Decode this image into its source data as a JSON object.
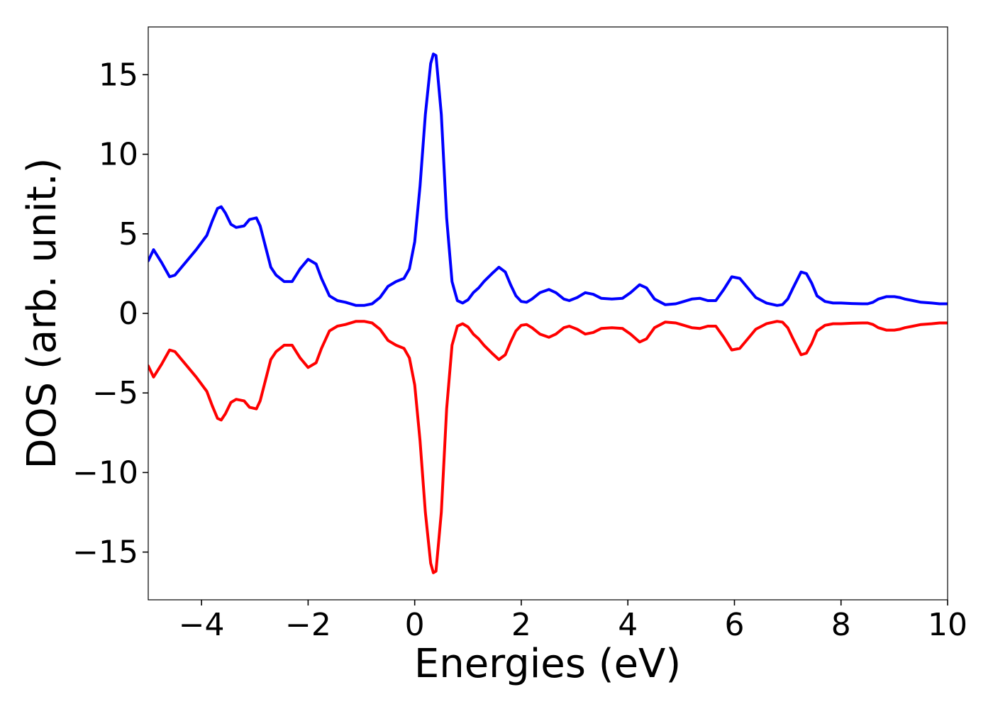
{
  "chart_data": {
    "type": "line",
    "title": "",
    "xlabel": "Energies (eV)",
    "ylabel": "DOS (arb. unit.)",
    "xlim": [
      -5,
      10
    ],
    "ylim": [
      -18,
      18
    ],
    "grid": false,
    "legend": "none",
    "x_ticks": [
      -4,
      -2,
      0,
      2,
      4,
      6,
      8,
      10
    ],
    "x_tick_labels": [
      "−4",
      "−2",
      "0",
      "2",
      "4",
      "6",
      "8",
      "10"
    ],
    "y_ticks": [
      15,
      10,
      5,
      0,
      -5,
      -10,
      -15
    ],
    "y_tick_labels": [
      "15",
      "10",
      "5",
      "0",
      "−5",
      "−10",
      "−15"
    ],
    "series": [
      {
        "color": "#0000ff",
        "x": [
          -5.0,
          -4.9,
          -4.75,
          -4.6,
          -4.5,
          -4.3,
          -4.1,
          -3.9,
          -3.8,
          -3.7,
          -3.63,
          -3.55,
          -3.45,
          -3.35,
          -3.2,
          -3.1,
          -2.97,
          -2.9,
          -2.8,
          -2.7,
          -2.6,
          -2.45,
          -2.3,
          -2.15,
          -2.0,
          -1.85,
          -1.75,
          -1.6,
          -1.45,
          -1.3,
          -1.1,
          -0.95,
          -0.8,
          -0.65,
          -0.5,
          -0.35,
          -0.2,
          -0.1,
          0.0,
          0.1,
          0.2,
          0.3,
          0.35,
          0.4,
          0.5,
          0.6,
          0.7,
          0.8,
          0.9,
          1.0,
          1.1,
          1.2,
          1.3,
          1.45,
          1.58,
          1.7,
          1.8,
          1.9,
          2.0,
          2.1,
          2.2,
          2.35,
          2.52,
          2.65,
          2.8,
          2.9,
          3.05,
          3.2,
          3.35,
          3.5,
          3.7,
          3.9,
          4.05,
          4.22,
          4.35,
          4.5,
          4.7,
          4.9,
          5.05,
          5.2,
          5.35,
          5.5,
          5.65,
          5.8,
          5.95,
          6.1,
          6.25,
          6.4,
          6.6,
          6.8,
          6.9,
          7.0,
          7.1,
          7.25,
          7.35,
          7.45,
          7.55,
          7.7,
          7.85,
          8.0,
          8.2,
          8.4,
          8.5,
          8.6,
          8.7,
          8.85,
          9.0,
          9.1,
          9.2,
          9.35,
          9.5,
          9.7,
          9.85,
          10.0
        ],
        "y": [
          3.3,
          4.0,
          3.2,
          2.3,
          2.4,
          3.2,
          4.0,
          4.9,
          5.8,
          6.6,
          6.7,
          6.3,
          5.6,
          5.4,
          5.5,
          5.9,
          6.0,
          5.5,
          4.2,
          2.9,
          2.4,
          2.0,
          2.0,
          2.8,
          3.4,
          3.1,
          2.2,
          1.1,
          0.8,
          0.7,
          0.5,
          0.5,
          0.6,
          1.0,
          1.7,
          2.0,
          2.2,
          2.8,
          4.5,
          8.0,
          12.5,
          15.7,
          16.3,
          16.2,
          12.5,
          6.0,
          2.0,
          0.8,
          0.65,
          0.85,
          1.3,
          1.6,
          2.0,
          2.5,
          2.9,
          2.6,
          1.8,
          1.1,
          0.75,
          0.7,
          0.9,
          1.3,
          1.5,
          1.3,
          0.9,
          0.8,
          1.0,
          1.3,
          1.2,
          0.95,
          0.9,
          0.95,
          1.3,
          1.8,
          1.6,
          0.9,
          0.55,
          0.6,
          0.75,
          0.9,
          0.95,
          0.8,
          0.8,
          1.5,
          2.3,
          2.2,
          1.6,
          1.0,
          0.65,
          0.5,
          0.55,
          0.9,
          1.6,
          2.6,
          2.5,
          1.9,
          1.1,
          0.75,
          0.65,
          0.65,
          0.62,
          0.6,
          0.6,
          0.7,
          0.9,
          1.05,
          1.05,
          1.0,
          0.9,
          0.8,
          0.7,
          0.65,
          0.6,
          0.6
        ]
      },
      {
        "color": "#ff0000",
        "x": [
          -5.0,
          -4.9,
          -4.75,
          -4.6,
          -4.5,
          -4.3,
          -4.1,
          -3.9,
          -3.8,
          -3.7,
          -3.63,
          -3.55,
          -3.45,
          -3.35,
          -3.2,
          -3.1,
          -2.97,
          -2.9,
          -2.8,
          -2.7,
          -2.6,
          -2.45,
          -2.3,
          -2.15,
          -2.0,
          -1.85,
          -1.75,
          -1.6,
          -1.45,
          -1.3,
          -1.1,
          -0.95,
          -0.8,
          -0.65,
          -0.5,
          -0.35,
          -0.2,
          -0.1,
          0.0,
          0.1,
          0.2,
          0.3,
          0.35,
          0.4,
          0.5,
          0.6,
          0.7,
          0.8,
          0.9,
          1.0,
          1.1,
          1.2,
          1.3,
          1.45,
          1.58,
          1.7,
          1.8,
          1.9,
          2.0,
          2.1,
          2.2,
          2.35,
          2.52,
          2.65,
          2.8,
          2.9,
          3.05,
          3.2,
          3.35,
          3.5,
          3.7,
          3.9,
          4.05,
          4.22,
          4.35,
          4.5,
          4.7,
          4.9,
          5.05,
          5.2,
          5.35,
          5.5,
          5.65,
          5.8,
          5.95,
          6.1,
          6.25,
          6.4,
          6.6,
          6.8,
          6.9,
          7.0,
          7.1,
          7.25,
          7.35,
          7.45,
          7.55,
          7.7,
          7.85,
          8.0,
          8.2,
          8.4,
          8.5,
          8.6,
          8.7,
          8.85,
          9.0,
          9.1,
          9.2,
          9.35,
          9.5,
          9.7,
          9.85,
          10.0
        ],
        "y": [
          -3.3,
          -4.0,
          -3.2,
          -2.3,
          -2.4,
          -3.2,
          -4.0,
          -4.9,
          -5.8,
          -6.6,
          -6.7,
          -6.3,
          -5.6,
          -5.4,
          -5.5,
          -5.9,
          -6.0,
          -5.5,
          -4.2,
          -2.9,
          -2.4,
          -2.0,
          -2.0,
          -2.8,
          -3.4,
          -3.1,
          -2.2,
          -1.1,
          -0.8,
          -0.7,
          -0.5,
          -0.5,
          -0.6,
          -1.0,
          -1.7,
          -2.0,
          -2.2,
          -2.8,
          -4.5,
          -8.0,
          -12.5,
          -15.7,
          -16.3,
          -16.2,
          -12.5,
          -6.0,
          -2.0,
          -0.8,
          -0.65,
          -0.85,
          -1.3,
          -1.6,
          -2.0,
          -2.5,
          -2.9,
          -2.6,
          -1.8,
          -1.1,
          -0.75,
          -0.7,
          -0.9,
          -1.3,
          -1.5,
          -1.3,
          -0.9,
          -0.8,
          -1.0,
          -1.3,
          -1.2,
          -0.95,
          -0.9,
          -0.95,
          -1.3,
          -1.8,
          -1.6,
          -0.9,
          -0.55,
          -0.6,
          -0.75,
          -0.9,
          -0.95,
          -0.8,
          -0.8,
          -1.5,
          -2.3,
          -2.2,
          -1.6,
          -1.0,
          -0.65,
          -0.5,
          -0.55,
          -0.9,
          -1.6,
          -2.6,
          -2.5,
          -1.9,
          -1.1,
          -0.75,
          -0.65,
          -0.65,
          -0.62,
          -0.6,
          -0.6,
          -0.7,
          -0.9,
          -1.05,
          -1.05,
          -1.0,
          -0.9,
          -0.8,
          -0.7,
          -0.65,
          -0.6,
          -0.6
        ]
      }
    ]
  }
}
